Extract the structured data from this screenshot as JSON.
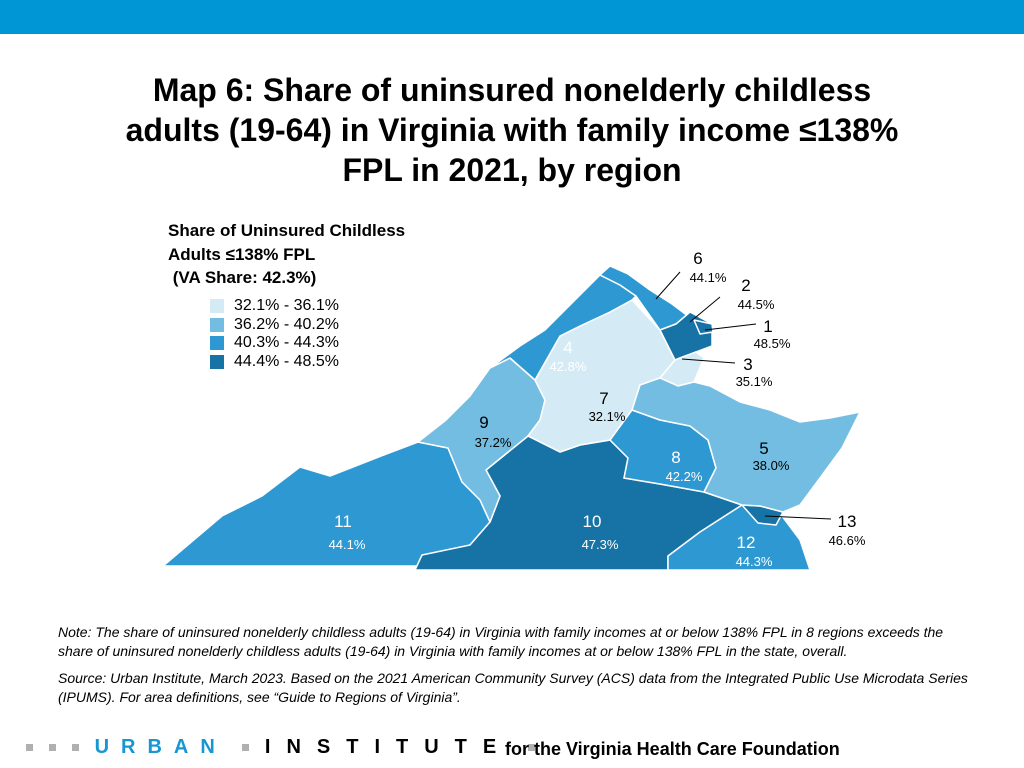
{
  "header": {
    "bar_color": "#0096d6"
  },
  "title": "Map 6: Share of uninsured nonelderly childless adults (19-64) in Virginia with family income ≤138% FPL in 2021, by region",
  "legend": {
    "title_lines": [
      "Share of Uninsured Childless",
      "Adults ≤138% FPL",
      " (VA Share: 42.3%)"
    ],
    "classes": [
      {
        "label": "32.1% - 36.1%",
        "color": "#d4ebf6"
      },
      {
        "label": "36.2% - 40.2%",
        "color": "#74bde2"
      },
      {
        "label": "40.3% - 44.3%",
        "color": "#2e98d2"
      },
      {
        "label": "44.4% - 48.5%",
        "color": "#1772a5"
      }
    ]
  },
  "regions": [
    {
      "id": "1",
      "value": "48.5%",
      "class": 3
    },
    {
      "id": "2",
      "value": "44.5%",
      "class": 3
    },
    {
      "id": "3",
      "value": "35.1%",
      "class": 0
    },
    {
      "id": "4",
      "value": "42.8%",
      "class": 2
    },
    {
      "id": "5",
      "value": "38.0%",
      "class": 1
    },
    {
      "id": "6",
      "value": "44.1%",
      "class": 2
    },
    {
      "id": "7",
      "value": "32.1%",
      "class": 0
    },
    {
      "id": "8",
      "value": "42.2%",
      "class": 2
    },
    {
      "id": "9",
      "value": "37.2%",
      "class": 1
    },
    {
      "id": "10",
      "value": "47.3%",
      "class": 3
    },
    {
      "id": "11",
      "value": "44.1%",
      "class": 2
    },
    {
      "id": "12",
      "value": "44.3%",
      "class": 2
    },
    {
      "id": "13",
      "value": "46.6%",
      "class": 3
    }
  ],
  "note": "Note: The share of uninsured nonelderly childless adults (19-64) in Virginia with family incomes at or below 138% FPL in 8 regions exceeds the share of uninsured nonelderly childless adults (19-64) in Virginia with family incomes at or below 138% FPL in the state, overall.",
  "source": "Source: Urban Institute, March 2023. Based on the 2021 American Community Survey (ACS) data from the Integrated Public Use Microdata Series (IPUMS). For area definitions, see “Guide to Regions of Virginia”.",
  "footer": {
    "logo_word1": "URBAN",
    "logo_word2": "INSTITUTE",
    "credit": "for the Virginia Health Care Foundation"
  }
}
